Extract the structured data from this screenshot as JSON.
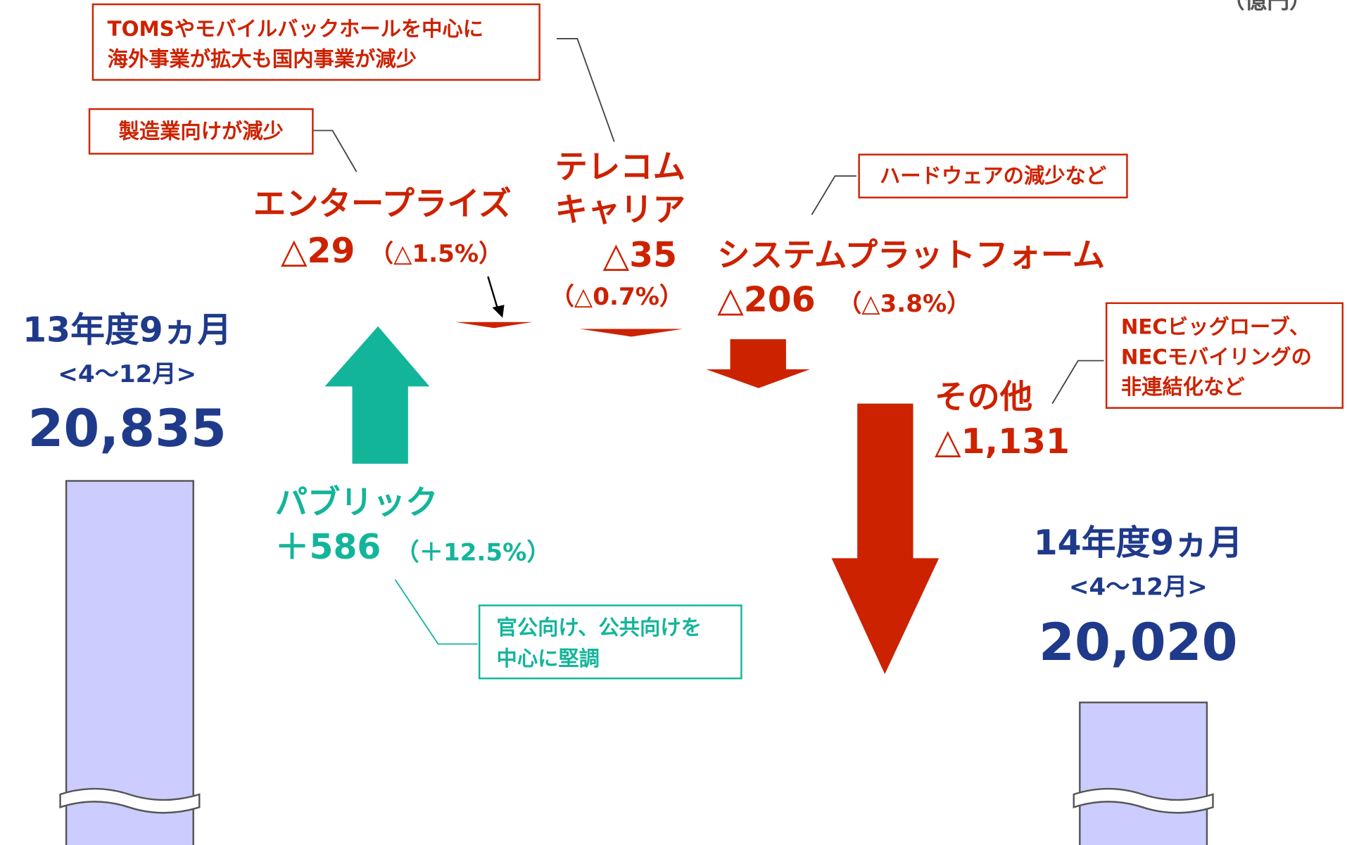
{
  "unit": "（億円）",
  "start": {
    "period": "13年度9ヵ月",
    "months": "<4～12月>",
    "value": "20,835"
  },
  "end": {
    "period": "14年度9ヵ月",
    "months": "<4～12月>",
    "value": "20,020"
  },
  "enterprise": {
    "name": "エンタープライズ",
    "change": "△29",
    "percent": "（△1.5%）",
    "note": "製造業向けが減少"
  },
  "telecom": {
    "name": [
      "テレコム",
      "キャリア"
    ],
    "change": "△35",
    "percent": "（△0.7%）",
    "note": [
      "TOMSやモバイルバックホールを中心に",
      "海外事業が拡大も国内事業が減少"
    ]
  },
  "system_platform": {
    "name": "システムプラットフォーム",
    "change": "△206",
    "percent": "（△3.8%）",
    "note": "ハードウェアの減少など"
  },
  "other": {
    "name": "その他",
    "change": "△1,131",
    "note": [
      "NECビッグローブ、",
      "NECモバイリングの",
      "非連結化など"
    ]
  },
  "public": {
    "name": "パブリック",
    "change": "＋586",
    "percent": "（＋12.5%）",
    "note": [
      "官公向け、公共向けを",
      "中心に堅調"
    ]
  }
}
